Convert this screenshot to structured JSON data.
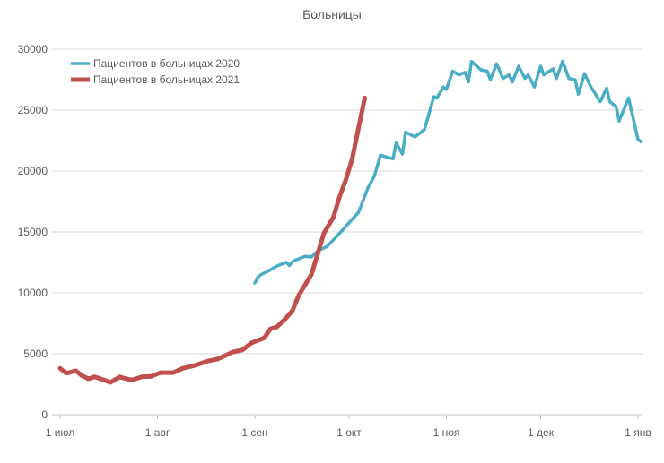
{
  "chart_data": {
    "type": "line",
    "title": "Больницы",
    "xlabel": "",
    "ylabel": "",
    "x_unit": "days since 1 июл",
    "xlim": [
      0,
      184
    ],
    "ylim": [
      0,
      30000
    ],
    "grid": true,
    "legend_position": "top-left",
    "y_ticks": [
      0,
      5000,
      10000,
      15000,
      20000,
      25000,
      30000
    ],
    "x_ticks": [
      {
        "day": 0,
        "label": "1 июл"
      },
      {
        "day": 31,
        "label": "1 авг"
      },
      {
        "day": 62,
        "label": "1 сен"
      },
      {
        "day": 92,
        "label": "1 окт"
      },
      {
        "day": 123,
        "label": "1 ноя"
      },
      {
        "day": 153,
        "label": "1 дек"
      },
      {
        "day": 184,
        "label": "1 янв"
      }
    ],
    "series": [
      {
        "name": "Пациентов в больницах 2020",
        "color": "#4bacc6",
        "points": [
          [
            62,
            10800
          ],
          [
            63,
            11300
          ],
          [
            64,
            11500
          ],
          [
            66,
            11750
          ],
          [
            69,
            12200
          ],
          [
            72,
            12500
          ],
          [
            73,
            12250
          ],
          [
            74,
            12550
          ],
          [
            75,
            12700
          ],
          [
            78,
            13000
          ],
          [
            80,
            12940
          ],
          [
            82,
            13450
          ],
          [
            85,
            13800
          ],
          [
            89,
            14900
          ],
          [
            95,
            16600
          ],
          [
            98,
            18600
          ],
          [
            100,
            19550
          ],
          [
            102,
            21300
          ],
          [
            106,
            21000
          ],
          [
            107,
            22300
          ],
          [
            109,
            21400
          ],
          [
            110,
            23200
          ],
          [
            113,
            22800
          ],
          [
            116,
            23400
          ],
          [
            119,
            26100
          ],
          [
            120,
            26000
          ],
          [
            122,
            26900
          ],
          [
            123,
            26700
          ],
          [
            125,
            28200
          ],
          [
            127,
            27900
          ],
          [
            129,
            28100
          ],
          [
            130,
            27300
          ],
          [
            131,
            29000
          ],
          [
            134,
            28300
          ],
          [
            136,
            28200
          ],
          [
            137,
            27500
          ],
          [
            139,
            28800
          ],
          [
            141,
            27600
          ],
          [
            143,
            27900
          ],
          [
            144,
            27300
          ],
          [
            146,
            28600
          ],
          [
            148,
            27600
          ],
          [
            149,
            27900
          ],
          [
            151,
            26900
          ],
          [
            153,
            28600
          ],
          [
            154,
            27900
          ],
          [
            157,
            28400
          ],
          [
            158,
            27600
          ],
          [
            160,
            29000
          ],
          [
            162,
            27600
          ],
          [
            164,
            27500
          ],
          [
            165,
            26300
          ],
          [
            167,
            28000
          ],
          [
            169,
            26900
          ],
          [
            170,
            26500
          ],
          [
            172,
            25700
          ],
          [
            174,
            26800
          ],
          [
            175,
            25700
          ],
          [
            177,
            25300
          ],
          [
            178,
            24100
          ],
          [
            181,
            26000
          ],
          [
            184,
            22600
          ],
          [
            185,
            22400
          ]
        ]
      },
      {
        "name": "Пациентов в больницах 2021",
        "color": "#c0504d",
        "points": [
          [
            0,
            3800
          ],
          [
            2,
            3400
          ],
          [
            5,
            3600
          ],
          [
            7,
            3200
          ],
          [
            9,
            2950
          ],
          [
            11,
            3100
          ],
          [
            14,
            2850
          ],
          [
            16,
            2650
          ],
          [
            19,
            3100
          ],
          [
            21,
            2950
          ],
          [
            23,
            2850
          ],
          [
            26,
            3100
          ],
          [
            29,
            3150
          ],
          [
            32,
            3450
          ],
          [
            36,
            3450
          ],
          [
            39,
            3800
          ],
          [
            43,
            4050
          ],
          [
            47,
            4400
          ],
          [
            50,
            4550
          ],
          [
            55,
            5150
          ],
          [
            58,
            5300
          ],
          [
            61,
            5900
          ],
          [
            65,
            6300
          ],
          [
            67,
            7050
          ],
          [
            69,
            7200
          ],
          [
            72,
            7950
          ],
          [
            74,
            8550
          ],
          [
            76,
            9800
          ],
          [
            80,
            11500
          ],
          [
            84,
            14900
          ],
          [
            87,
            16200
          ],
          [
            89,
            17900
          ],
          [
            91,
            19300
          ],
          [
            93,
            21000
          ],
          [
            95,
            23500
          ],
          [
            97,
            26000
          ]
        ]
      }
    ]
  }
}
